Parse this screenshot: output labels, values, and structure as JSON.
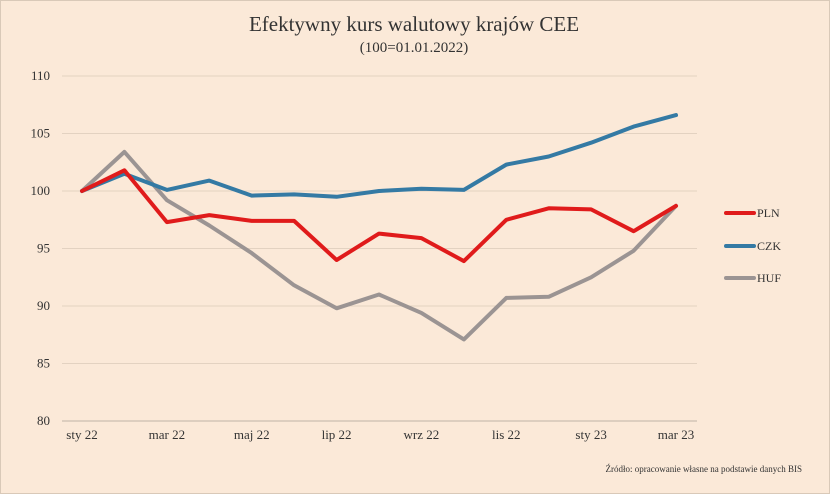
{
  "chart_data": {
    "type": "line",
    "title": "Efektywny kurs walutowy krajów CEE",
    "subtitle": "(100=01.01.2022)",
    "xlabel": "",
    "ylabel": "",
    "ylim": [
      80,
      110
    ],
    "yticks": [
      "80",
      "85",
      "90",
      "95",
      "100",
      "105",
      "110"
    ],
    "grid": true,
    "legend_position": "right",
    "x": [
      "sty 22",
      "lut 22",
      "mar 22",
      "kwi 22",
      "maj 22",
      "cze 22",
      "lip 22",
      "sie 22",
      "wrz 22",
      "paź 22",
      "lis 22",
      "gru 22",
      "sty 23",
      "lut 23",
      "mar 23"
    ],
    "x_tick_labels": [
      "sty 22",
      "",
      "mar 22",
      "",
      "maj 22",
      "",
      "lip 22",
      "",
      "wrz 22",
      "",
      "lis 22",
      "",
      "sty 23",
      "",
      "mar 23"
    ],
    "series": [
      {
        "name": "PLN",
        "color": "#e01b1b",
        "values": [
          100.0,
          101.8,
          97.3,
          97.9,
          97.4,
          97.4,
          94.0,
          96.3,
          95.9,
          93.9,
          97.5,
          98.5,
          98.4,
          96.5,
          98.7
        ]
      },
      {
        "name": "CZK",
        "color": "#347aa4",
        "values": [
          100.0,
          101.5,
          100.1,
          100.9,
          99.6,
          99.7,
          99.5,
          100.0,
          100.2,
          100.1,
          102.3,
          103.0,
          104.2,
          105.6,
          106.6
        ]
      },
      {
        "name": "HUF",
        "color": "#9b9493",
        "values": [
          100.0,
          103.4,
          99.2,
          97.0,
          94.6,
          91.8,
          89.8,
          91.0,
          89.4,
          87.1,
          90.7,
          90.8,
          92.5,
          94.8,
          98.7
        ]
      }
    ],
    "source": "Źródło: opracowanie własne na podstawie danych BIS"
  }
}
